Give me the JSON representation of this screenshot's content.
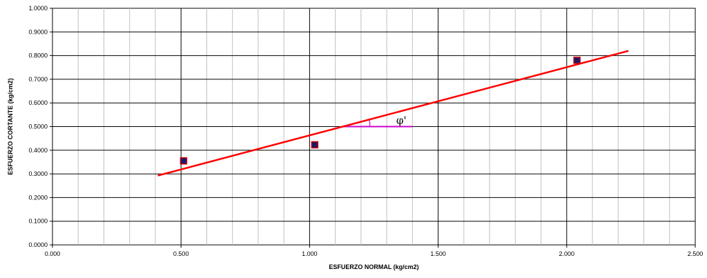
{
  "chart_data": {
    "type": "scatter",
    "xlabel": "ESFUERZO NORMAL  (kg/cm2)",
    "ylabel": "ESFUERZO CORTANTE  (kg/cm2)",
    "xlim": [
      0,
      2.5
    ],
    "ylim": [
      0,
      1.0
    ],
    "x_ticks": [
      "0.000",
      "0.500",
      "1.000",
      "1.500",
      "2.000",
      "2.500"
    ],
    "y_ticks": [
      "0.0000",
      "0.1000",
      "0.2000",
      "0.3000",
      "0.4000",
      "0.5000",
      "0.6000",
      "0.7000",
      "0.8000",
      "0.9000",
      "1.0000"
    ],
    "grid": true,
    "grid_minor_x_step": 0.1,
    "series": [
      {
        "kind": "points",
        "marker": "square",
        "color": "#1a1a6e",
        "edge_color": "#cc0000",
        "x": [
          0.51,
          1.02,
          2.04
        ],
        "y": [
          0.355,
          0.423,
          0.78
        ]
      },
      {
        "kind": "line",
        "color": "#ff0000",
        "x": [
          0.41,
          2.24
        ],
        "y": [
          0.293,
          0.82
        ]
      }
    ],
    "annotation": {
      "text": "φ'",
      "color": "#cc00cc",
      "baseline": {
        "x": [
          1.13,
          1.4
        ],
        "y": [
          0.5,
          0.5
        ]
      }
    }
  }
}
